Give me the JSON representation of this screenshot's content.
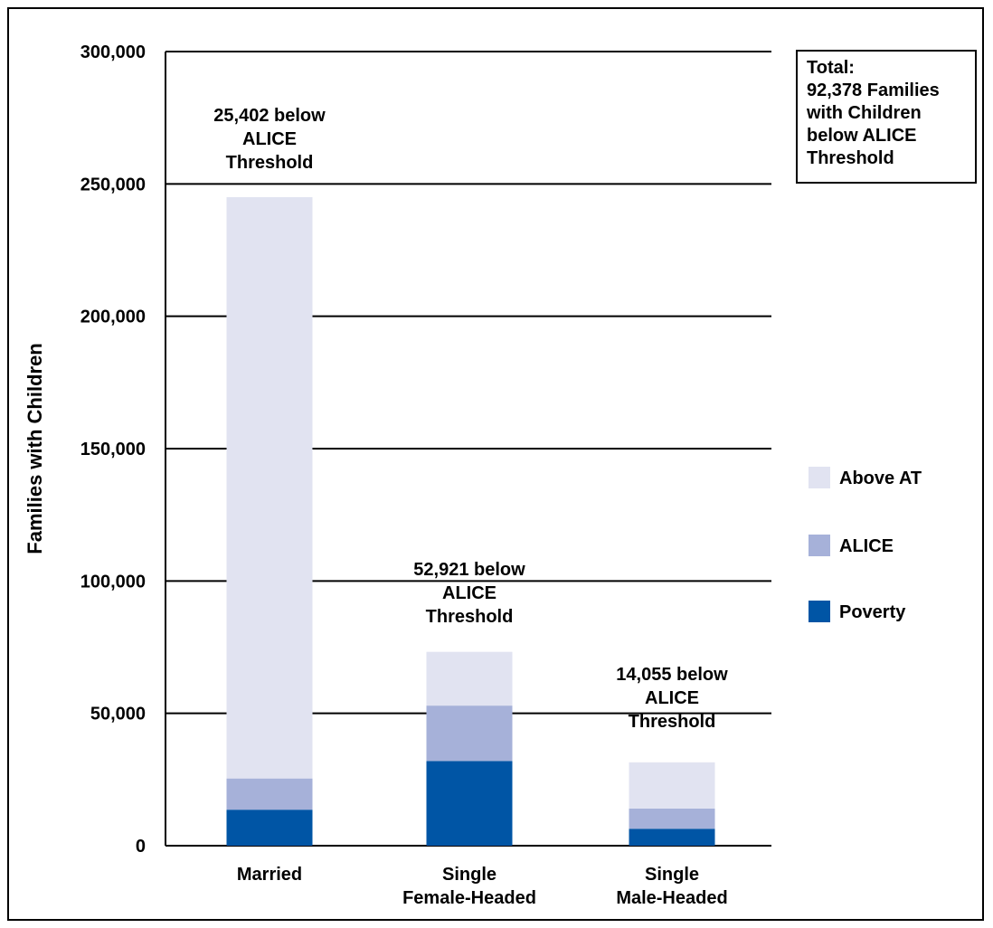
{
  "chart_data": {
    "type": "bar",
    "stacked": true,
    "ylabel": "Families with Children",
    "ylim": [
      0,
      300000
    ],
    "yticks": [
      0,
      50000,
      100000,
      150000,
      200000,
      250000,
      300000
    ],
    "ytick_labels": [
      "0",
      "50,000",
      "100,000",
      "150,000",
      "200,000",
      "250,000",
      "300,000"
    ],
    "grid": true,
    "categories": [
      [
        "Married"
      ],
      [
        "Single",
        "Female-Headed"
      ],
      [
        "Single",
        "Male-Headed"
      ]
    ],
    "series": [
      {
        "name": "Poverty",
        "color": "#0055a5",
        "values": [
          13600,
          32000,
          6400
        ]
      },
      {
        "name": "ALICE",
        "color": "#a6b1d9",
        "values": [
          11802,
          20921,
          7655
        ]
      },
      {
        "name": "Above AT",
        "color": "#e1e3f1",
        "values": [
          219600,
          20300,
          17445
        ]
      }
    ],
    "annotations": [
      [
        "25,402 below",
        "ALICE",
        "Threshold"
      ],
      [
        "52,921 below",
        "ALICE",
        "Threshold"
      ],
      [
        "14,055 below",
        "ALICE",
        "Threshold"
      ]
    ],
    "legend": {
      "placement": "right",
      "order": [
        "Above AT",
        "ALICE",
        "Poverty"
      ]
    },
    "total_box": [
      "Total:",
      "92,378 Families",
      "with Children",
      "below ALICE",
      "Threshold"
    ]
  }
}
